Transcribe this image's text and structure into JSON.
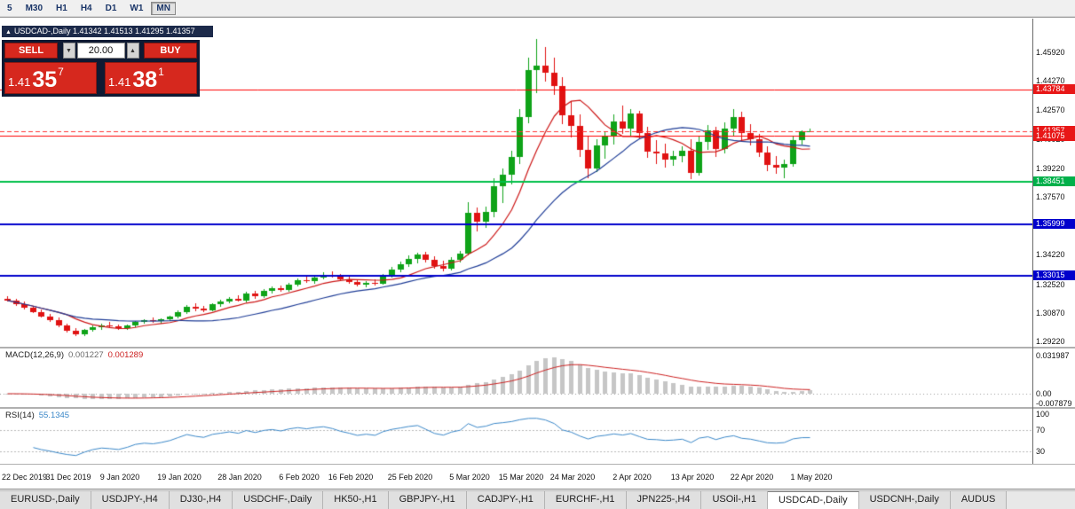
{
  "toolbar": {
    "timeframes": [
      "5",
      "M30",
      "H1",
      "H4",
      "D1",
      "W1",
      "MN"
    ],
    "active_index": 6
  },
  "chart_header": {
    "collapse_arrow": "▲",
    "text": "USDCAD-,Daily 1.41342 1.41513 1.41295 1.41357"
  },
  "trade_panel": {
    "sell_label": "SELL",
    "buy_label": "BUY",
    "volume": "20.00",
    "spin_down": "▼",
    "spin_up": "▲",
    "bid": {
      "big": "1.41",
      "pips": "35",
      "frac": "7"
    },
    "ask": {
      "big": "1.41",
      "pips": "38",
      "frac": "1"
    }
  },
  "chart_data": {
    "type": "candlestick",
    "title": "USDCAD-,Daily",
    "symbol": "USDCAD",
    "timeframe": "Daily",
    "current_quote": {
      "open": "1.41342",
      "high": "1.41513",
      "low": "1.41295",
      "close": "1.41357",
      "bid": "1.41357",
      "ask": "1.41381"
    },
    "price_range": {
      "min": 1.2891,
      "max": 1.4786
    },
    "colors": {
      "up": "#0fa318",
      "down": "#e01212",
      "ma_fast": "#cc1616",
      "ma_slow": "#1e3c96",
      "macd_hist": "#c6c6c6",
      "macd_signal": "#cc2020",
      "rsi_line": "#3a87c8"
    },
    "ma_periods": {
      "fast": 8,
      "slow": 21
    },
    "ohlc": [
      [
        1.317,
        1.3185,
        1.315,
        1.3158
      ],
      [
        1.3158,
        1.3168,
        1.3128,
        1.3136
      ],
      [
        1.3136,
        1.315,
        1.3108,
        1.3116
      ],
      [
        1.3116,
        1.3128,
        1.3085,
        1.3092
      ],
      [
        1.3092,
        1.3105,
        1.3058,
        1.3066
      ],
      [
        1.3066,
        1.308,
        1.3034,
        1.3044
      ],
      [
        1.3044,
        1.3058,
        1.3004,
        1.3012
      ],
      [
        1.3012,
        1.3022,
        1.2974,
        1.2984
      ],
      [
        1.2984,
        1.2998,
        1.2954,
        1.2962
      ],
      [
        1.2962,
        1.2992,
        1.2952,
        1.2986
      ],
      [
        1.2986,
        1.3012,
        1.2976,
        1.3004
      ],
      [
        1.3004,
        1.3026,
        1.299,
        1.3016
      ],
      [
        1.3016,
        1.3032,
        1.3,
        1.3008
      ],
      [
        1.3008,
        1.302,
        1.2986,
        1.2996
      ],
      [
        1.2996,
        1.3018,
        1.2988,
        1.3012
      ],
      [
        1.3012,
        1.3042,
        1.3006,
        1.3034
      ],
      [
        1.3034,
        1.3052,
        1.3022,
        1.3044
      ],
      [
        1.3044,
        1.306,
        1.3028,
        1.3038
      ],
      [
        1.3038,
        1.3056,
        1.3024,
        1.3048
      ],
      [
        1.3048,
        1.3072,
        1.304,
        1.3064
      ],
      [
        1.3064,
        1.31,
        1.3056,
        1.309
      ],
      [
        1.309,
        1.3134,
        1.3082,
        1.3124
      ],
      [
        1.3124,
        1.314,
        1.3098,
        1.311
      ],
      [
        1.311,
        1.3126,
        1.3092,
        1.3102
      ],
      [
        1.3102,
        1.3144,
        1.3096,
        1.3136
      ],
      [
        1.3136,
        1.316,
        1.3124,
        1.315
      ],
      [
        1.315,
        1.3176,
        1.314,
        1.3168
      ],
      [
        1.3168,
        1.3186,
        1.315,
        1.3158
      ],
      [
        1.3158,
        1.3206,
        1.3148,
        1.3196
      ],
      [
        1.3196,
        1.3212,
        1.317,
        1.3182
      ],
      [
        1.3182,
        1.3224,
        1.3172,
        1.3214
      ],
      [
        1.3214,
        1.324,
        1.32,
        1.3228
      ],
      [
        1.3228,
        1.3246,
        1.321,
        1.3218
      ],
      [
        1.3218,
        1.3262,
        1.3208,
        1.3252
      ],
      [
        1.3252,
        1.3286,
        1.324,
        1.3276
      ],
      [
        1.3276,
        1.3296,
        1.3258,
        1.3268
      ],
      [
        1.3268,
        1.3304,
        1.3256,
        1.3292
      ],
      [
        1.3292,
        1.332,
        1.328,
        1.3308
      ],
      [
        1.3308,
        1.3324,
        1.3288,
        1.3296
      ],
      [
        1.3296,
        1.3312,
        1.3268,
        1.3278
      ],
      [
        1.3278,
        1.3298,
        1.3254,
        1.3264
      ],
      [
        1.3264,
        1.3282,
        1.3238,
        1.3248
      ],
      [
        1.3248,
        1.3272,
        1.3234,
        1.3262
      ],
      [
        1.3262,
        1.328,
        1.3244,
        1.3254
      ],
      [
        1.3254,
        1.3312,
        1.3248,
        1.33
      ],
      [
        1.33,
        1.3352,
        1.329,
        1.3338
      ],
      [
        1.3338,
        1.3382,
        1.3322,
        1.3366
      ],
      [
        1.3366,
        1.3416,
        1.3352,
        1.3398
      ],
      [
        1.3398,
        1.3436,
        1.337,
        1.3422
      ],
      [
        1.3422,
        1.344,
        1.3378,
        1.3394
      ],
      [
        1.3394,
        1.3412,
        1.3344,
        1.3358
      ],
      [
        1.3358,
        1.339,
        1.3328,
        1.3342
      ],
      [
        1.3342,
        1.3406,
        1.3334,
        1.3392
      ],
      [
        1.3392,
        1.3446,
        1.338,
        1.343
      ],
      [
        1.343,
        1.3724,
        1.3418,
        1.3662
      ],
      [
        1.3662,
        1.3696,
        1.3558,
        1.3612
      ],
      [
        1.3612,
        1.3702,
        1.3578,
        1.3668
      ],
      [
        1.3668,
        1.3862,
        1.364,
        1.382
      ],
      [
        1.382,
        1.3922,
        1.372,
        1.3886
      ],
      [
        1.3886,
        1.4022,
        1.3828,
        1.3986
      ],
      [
        1.3986,
        1.4262,
        1.3948,
        1.4216
      ],
      [
        1.4216,
        1.4562,
        1.418,
        1.449
      ],
      [
        1.449,
        1.4668,
        1.4358,
        1.4512
      ],
      [
        1.4512,
        1.4622,
        1.442,
        1.4476
      ],
      [
        1.4476,
        1.456,
        1.4348,
        1.4396
      ],
      [
        1.4396,
        1.4446,
        1.4178,
        1.423
      ],
      [
        1.423,
        1.4312,
        1.4098,
        1.4164
      ],
      [
        1.4164,
        1.4232,
        1.3988,
        1.403
      ],
      [
        1.403,
        1.4112,
        1.3864,
        1.392
      ],
      [
        1.392,
        1.4092,
        1.39,
        1.4054
      ],
      [
        1.4054,
        1.4136,
        1.3978,
        1.4106
      ],
      [
        1.4106,
        1.4232,
        1.4058,
        1.419
      ],
      [
        1.419,
        1.4282,
        1.4118,
        1.415
      ],
      [
        1.415,
        1.4266,
        1.4104,
        1.4236
      ],
      [
        1.4236,
        1.4252,
        1.4088,
        1.4124
      ],
      [
        1.4124,
        1.416,
        1.3984,
        1.402
      ],
      [
        1.402,
        1.4082,
        1.3944,
        1.4006
      ],
      [
        1.4006,
        1.4062,
        1.3928,
        1.3974
      ],
      [
        1.3974,
        1.4022,
        1.3934,
        1.399
      ],
      [
        1.399,
        1.4046,
        1.3954,
        1.4022
      ],
      [
        1.4022,
        1.409,
        1.3858,
        1.3896
      ],
      [
        1.3896,
        1.4106,
        1.3878,
        1.4076
      ],
      [
        1.4076,
        1.4172,
        1.403,
        1.414
      ],
      [
        1.414,
        1.4162,
        1.3988,
        1.4034
      ],
      [
        1.4034,
        1.4186,
        1.401,
        1.415
      ],
      [
        1.415,
        1.4266,
        1.411,
        1.422
      ],
      [
        1.422,
        1.4246,
        1.4078,
        1.4124
      ],
      [
        1.4124,
        1.4176,
        1.4054,
        1.409
      ],
      [
        1.409,
        1.4122,
        1.3988,
        1.4014
      ],
      [
        1.4014,
        1.4048,
        1.3904,
        1.394
      ],
      [
        1.394,
        1.399,
        1.3888,
        1.3924
      ],
      [
        1.3924,
        1.3972,
        1.3864,
        1.3944
      ],
      [
        1.3944,
        1.4112,
        1.393,
        1.4084
      ],
      [
        1.4084,
        1.4142,
        1.4058,
        1.4134
      ],
      [
        1.41342,
        1.41513,
        1.41295,
        1.41357
      ]
    ],
    "price_axis_ticks": [
      {
        "text": "1.45920",
        "value": 1.4592
      },
      {
        "text": "1.44270",
        "value": 1.4427
      },
      {
        "text": "1.42570",
        "value": 1.4257
      },
      {
        "text": "1.40920",
        "value": 1.4092
      },
      {
        "text": "1.39220",
        "value": 1.3922
      },
      {
        "text": "1.37570",
        "value": 1.3757
      },
      {
        "text": "1.35920",
        "value": 1.3592
      },
      {
        "text": "1.34220",
        "value": 1.3422
      },
      {
        "text": "1.32520",
        "value": 1.3252
      },
      {
        "text": "1.30870",
        "value": 1.3087
      },
      {
        "text": "1.29220",
        "value": 1.2922
      }
    ],
    "hlines": [
      {
        "value": 1.43784,
        "color": "#ff0000",
        "width": 1,
        "dash": false
      },
      {
        "value": 1.41357,
        "color": "#ff3434",
        "width": 1,
        "dash": true
      },
      {
        "value": 1.41075,
        "color": "#ff0000",
        "width": 1,
        "dash": false
      },
      {
        "value": 1.38451,
        "color": "#00c04a",
        "width": 2,
        "dash": false
      },
      {
        "value": 1.35999,
        "color": "#0000cc",
        "width": 2,
        "dash": false
      },
      {
        "value": 1.33015,
        "color": "#0000cc",
        "width": 2,
        "dash": false
      }
    ],
    "price_labels": [
      {
        "text": "1.43784",
        "value": 1.43784,
        "bg": "#e81717"
      },
      {
        "text": "1.41357",
        "value": 1.41357,
        "bg": "#e81717"
      },
      {
        "text": "1.41075",
        "value": 1.41075,
        "bg": "#e81717"
      },
      {
        "text": "1.38451",
        "value": 1.38451,
        "bg": "#00b04a"
      },
      {
        "text": "1.35999",
        "value": 1.35999,
        "bg": "#0000cc"
      },
      {
        "text": "1.33015",
        "value": 1.33015,
        "bg": "#0000cc"
      }
    ],
    "date_labels": [
      {
        "text": "22 Dec 2019",
        "bar": 0
      },
      {
        "text": "31 Dec 2019",
        "bar": 7
      },
      {
        "text": "9 Jan 2020",
        "bar": 13
      },
      {
        "text": "19 Jan 2020",
        "bar": 20
      },
      {
        "text": "28 Jan 2020",
        "bar": 27
      },
      {
        "text": "6 Feb 2020",
        "bar": 34
      },
      {
        "text": "16 Feb 2020",
        "bar": 40
      },
      {
        "text": "25 Feb 2020",
        "bar": 47
      },
      {
        "text": "5 Mar 2020",
        "bar": 54
      },
      {
        "text": "15 Mar 2020",
        "bar": 60
      },
      {
        "text": "24 Mar 2020",
        "bar": 66
      },
      {
        "text": "2 Apr 2020",
        "bar": 73
      },
      {
        "text": "13 Apr 2020",
        "bar": 80
      },
      {
        "text": "22 Apr 2020",
        "bar": 87
      },
      {
        "text": "1 May 2020",
        "bar": 94
      }
    ],
    "macd": {
      "name": "MACD(12,26,9)",
      "value_main": "0.001227",
      "value_signal": "0.001289",
      "params": [
        12,
        26,
        9
      ],
      "range": {
        "min": -0.0112,
        "max": 0.038
      },
      "axis": [
        {
          "text": "0.031987",
          "value": 0.031987
        },
        {
          "text": "0.00",
          "value": 0
        },
        {
          "text": "-0.007879",
          "value": -0.007879
        }
      ]
    },
    "rsi": {
      "name": "RSI(14)",
      "value": "55.1345",
      "period": 14,
      "range": {
        "min": 6.7,
        "max": 110
      },
      "levels": [
        70,
        30
      ],
      "axis": [
        {
          "text": "100",
          "value": 100
        },
        {
          "text": "70",
          "value": 70
        },
        {
          "text": "30",
          "value": 30
        }
      ]
    }
  },
  "tabs": {
    "active_index": 10,
    "items": [
      "EURUSD-,Daily",
      "USDJPY-,H4",
      "DJ30-,H4",
      "USDCHF-,Daily",
      "HK50-,H1",
      "GBPJPY-,H1",
      "CADJPY-,H1",
      "EURCHF-,H1",
      "JPN225-,H4",
      "USOil-,H1",
      "USDCAD-,Daily",
      "USDCNH-,Daily",
      "AUDUS"
    ]
  }
}
